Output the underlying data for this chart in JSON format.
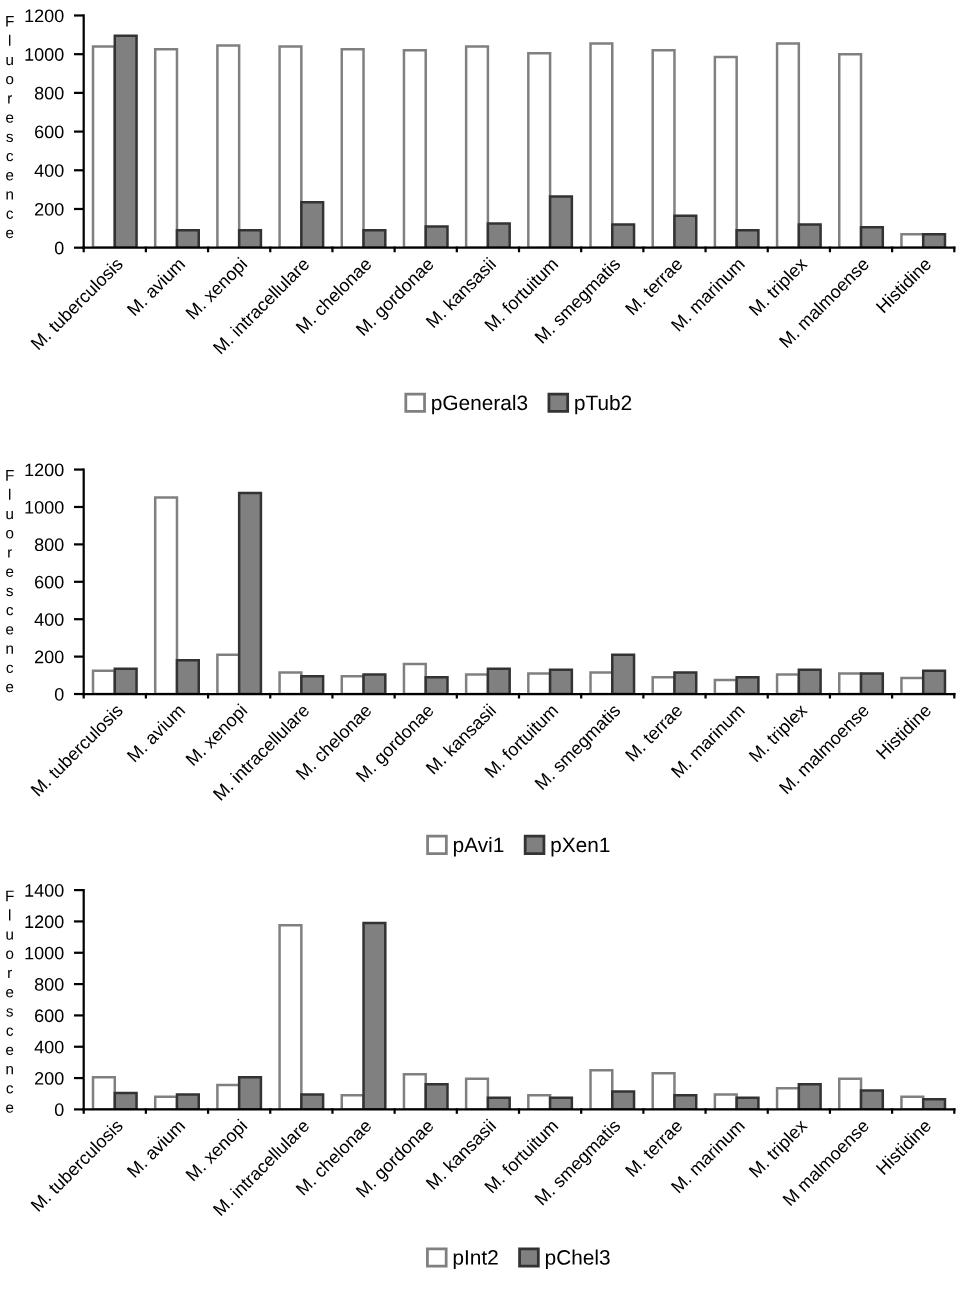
{
  "chart_data": [
    {
      "type": "bar",
      "ylabel": "Fluorescence",
      "categories": [
        "M. tuberculosis",
        "M. avium",
        "M. xenopi",
        "M. intracellulare",
        "M. chelonae",
        "M. gordonae",
        "M. kansasii",
        "M. fortuitum",
        "M. smegmatis",
        "M. terrae",
        "M. marinum",
        "M. triplex",
        "M. malmoense",
        "Histidine"
      ],
      "series": [
        {
          "name": "pGeneral3",
          "color": "#ffffff",
          "values": [
            1040,
            1025,
            1045,
            1040,
            1025,
            1020,
            1040,
            1005,
            1055,
            1020,
            985,
            1055,
            1000,
            70
          ]
        },
        {
          "name": "pTub2",
          "color": "#808080",
          "values": [
            1095,
            90,
            90,
            235,
            90,
            110,
            125,
            265,
            120,
            165,
            90,
            120,
            105,
            70
          ]
        }
      ],
      "ylim": [
        0,
        1200
      ],
      "yticks": [
        0,
        200,
        400,
        600,
        800,
        1000,
        1200
      ],
      "grid": false,
      "legend": "bottom"
    },
    {
      "type": "bar",
      "ylabel": "Fluorescence",
      "categories": [
        "M. tuberculosis",
        "M. avium",
        "M. xenopi",
        "M. intracellulare",
        "M. chelonae",
        "M. gordonae",
        "M. kansasii",
        "M. fortuitum",
        "M. smegmatis",
        "M. terrae",
        "M. marinum",
        "M. triplex",
        "M. malmoense",
        "Histidine"
      ],
      "series": [
        {
          "name": "pAvi1",
          "color": "#ffffff",
          "values": [
            125,
            1050,
            210,
            115,
            95,
            160,
            105,
            110,
            115,
            90,
            75,
            105,
            110,
            85
          ]
        },
        {
          "name": "pXen1",
          "color": "#808080",
          "values": [
            135,
            180,
            1075,
            95,
            105,
            90,
            135,
            130,
            210,
            115,
            90,
            130,
            110,
            125
          ]
        }
      ],
      "ylim": [
        0,
        1200
      ],
      "yticks": [
        0,
        200,
        400,
        600,
        800,
        1000,
        1200
      ],
      "grid": false,
      "legend": "bottom"
    },
    {
      "type": "bar",
      "ylabel": "Fluorescence",
      "categories": [
        "M. tuberculosis",
        "M. avium",
        "M. xenopi",
        "M. intracellulare",
        "M. chelonae",
        "M. gordonae",
        "M. kansasii",
        "M. fortuitum",
        "M. smegmatis",
        "M. terrae",
        "M. marinum",
        "M. triplex",
        "M malmoense",
        "Histidine"
      ],
      "series": [
        {
          "name": "pInt2",
          "color": "#ffffff",
          "values": [
            205,
            80,
            155,
            1175,
            90,
            225,
            195,
            90,
            250,
            230,
            95,
            135,
            195,
            80
          ]
        },
        {
          "name": "pChel3",
          "color": "#808080",
          "values": [
            105,
            95,
            205,
            95,
            1190,
            160,
            75,
            75,
            115,
            90,
            75,
            160,
            120,
            65
          ]
        }
      ],
      "ylim": [
        0,
        1400
      ],
      "yticks": [
        0,
        200,
        400,
        600,
        800,
        1000,
        1200,
        1400
      ],
      "grid": false,
      "legend": "bottom"
    }
  ]
}
